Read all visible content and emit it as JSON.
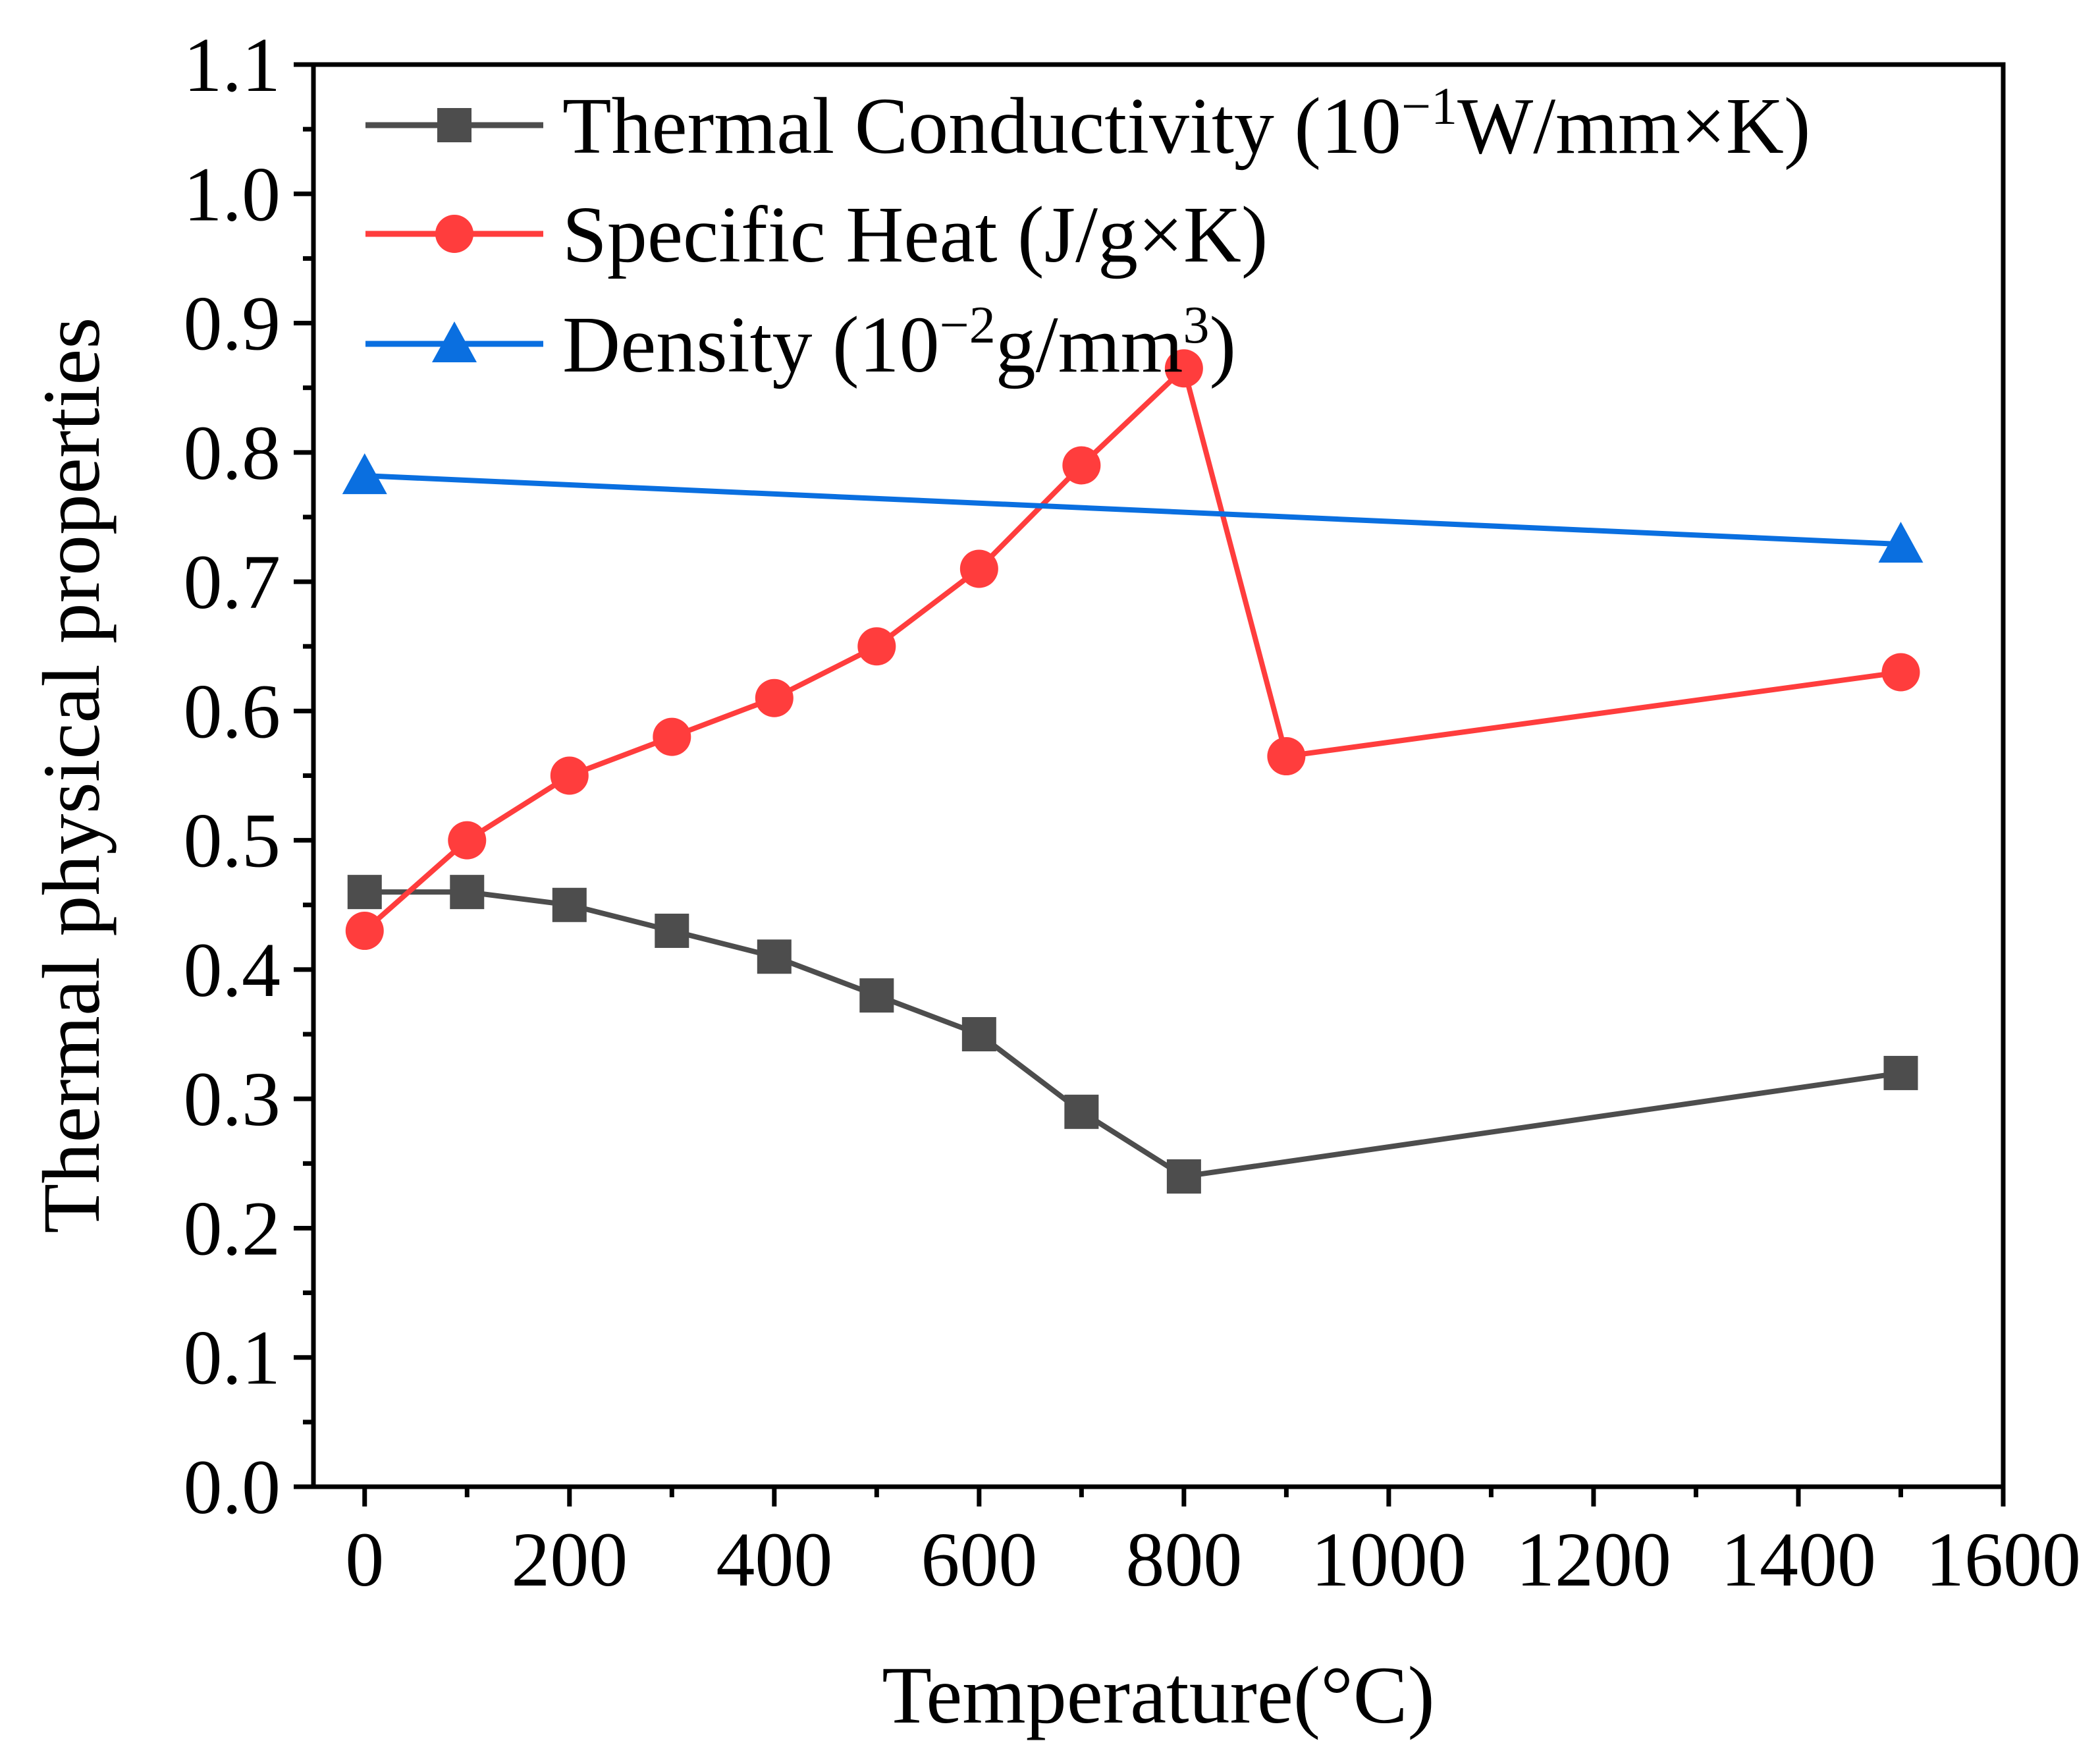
{
  "chart_data": {
    "type": "line",
    "title": "",
    "xlabel": "Temperature(°C)",
    "ylabel": "Thermal physical properties",
    "xlim": [
      -50,
      1600
    ],
    "ylim": [
      0,
      1.1
    ],
    "xticks": [
      0,
      200,
      400,
      600,
      800,
      1000,
      1200,
      1400,
      1600
    ],
    "xtick_labels": [
      "0",
      "200",
      "400",
      "600",
      "800",
      "1000",
      "1200",
      "1400",
      "1600"
    ],
    "yticks": [
      0,
      0.1,
      0.2,
      0.3,
      0.4,
      0.5,
      0.6,
      0.7,
      0.8,
      0.9,
      1.0,
      1.1
    ],
    "ytick_labels": [
      "0.0",
      "0.1",
      "0.2",
      "0.3",
      "0.4",
      "0.5",
      "0.6",
      "0.7",
      "0.8",
      "0.9",
      "1.0",
      "1.1"
    ],
    "grid": false,
    "legend_position": "top-left",
    "series": [
      {
        "name": "Thermal Conductivity (10⁻¹W/mm×K)",
        "legend": {
          "main": "Thermal Conductivity (10",
          "sup1": "−1",
          "rest": "W/mm×K)"
        },
        "color": "#4d4d4d",
        "marker": "square",
        "x": [
          0,
          100,
          200,
          300,
          400,
          500,
          600,
          700,
          800,
          1500
        ],
        "y": [
          0.46,
          0.46,
          0.45,
          0.43,
          0.41,
          0.38,
          0.35,
          0.29,
          0.24,
          0.32
        ]
      },
      {
        "name": "Specific Heat (J/g×K)",
        "legend": {
          "main": "Specific Heat (J/g×K)"
        },
        "color": "#ff3d3d",
        "marker": "circle",
        "x": [
          0,
          100,
          200,
          300,
          400,
          500,
          600,
          700,
          800,
          900,
          1500
        ],
        "y": [
          0.43,
          0.5,
          0.55,
          0.58,
          0.61,
          0.65,
          0.71,
          0.79,
          0.865,
          0.565,
          0.63
        ]
      },
      {
        "name": "Density (10⁻²g/mm³)",
        "legend": {
          "main": "Density (10",
          "sup1": "−2",
          "mid": "g/mm",
          "sup2": "3",
          "rest": ")"
        },
        "color": "#0a6fe0",
        "marker": "triangle",
        "x": [
          0,
          1500
        ],
        "y": [
          0.782,
          0.729
        ]
      }
    ]
  }
}
